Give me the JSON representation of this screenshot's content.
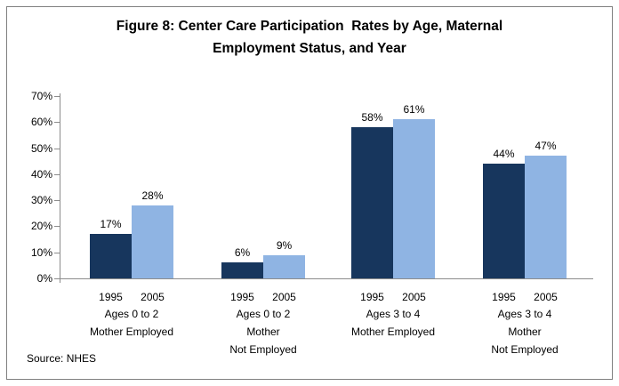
{
  "title": {
    "line1": "Figure 8: Center Care Participation  Rates by Age, Maternal",
    "line2": "Employment Status, and Year"
  },
  "source": "Source: NHES",
  "colors": {
    "bar_1995": "#17365D",
    "bar_2005": "#8FB4E3",
    "axis": "#8C8C8C",
    "frame_border": "#808080",
    "text": "#000000"
  },
  "chart_data": {
    "type": "bar",
    "title": "Figure 8: Center Care Participation Rates by Age, Maternal Employment Status, and Year",
    "categories": [
      "Ages 0 to 2 Mother Employed",
      "Ages 0 to 2 Mother Not Employed",
      "Ages 3 to 4 Mother Employed",
      "Ages 3 to 4 Mother Not Employed"
    ],
    "category_label_lines": [
      [
        "Ages 0 to 2",
        "Mother Employed"
      ],
      [
        "Ages 0 to 2",
        "Mother",
        "Not Employed"
      ],
      [
        "Ages 3 to 4",
        "Mother Employed"
      ],
      [
        "Ages 3 to 4",
        "Mother",
        "Not Employed"
      ]
    ],
    "series": [
      {
        "name": "1995",
        "color": "#17365D",
        "values": [
          17,
          6,
          58,
          44
        ]
      },
      {
        "name": "2005",
        "color": "#8FB4E3",
        "values": [
          28,
          9,
          61,
          47
        ]
      }
    ],
    "value_labels": [
      [
        "17%",
        "6%",
        "58%",
        "44%"
      ],
      [
        "28%",
        "9%",
        "61%",
        "47%"
      ]
    ],
    "xlabel": "",
    "ylabel": "",
    "ylim": [
      0,
      70
    ],
    "ytick_step": 10,
    "ytick_labels": [
      "0%",
      "10%",
      "20%",
      "30%",
      "40%",
      "50%",
      "60%",
      "70%"
    ],
    "grid": false,
    "legend_position": "none",
    "source_note": "Source: NHES"
  }
}
